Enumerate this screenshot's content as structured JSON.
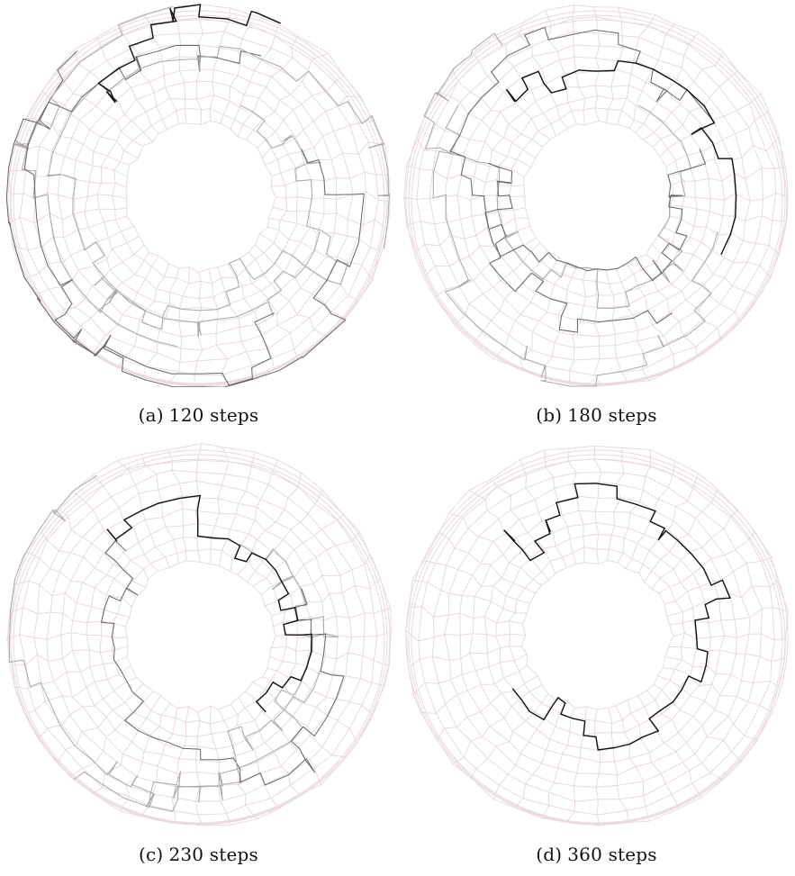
{
  "figure": {
    "panels": [
      {
        "label": "(a)",
        "caption": "120 steps",
        "steps": 120
      },
      {
        "label": "(b)",
        "caption": "180 steps",
        "steps": 180
      },
      {
        "label": "(c)",
        "caption": "230 steps",
        "steps": 230
      },
      {
        "label": "(d)",
        "caption": "360 steps",
        "steps": 360
      }
    ],
    "colors": {
      "mesh": "#e9dada",
      "path_dark": "#111111",
      "path_mid": "#666666",
      "path_light": "#a9a9a9"
    }
  }
}
